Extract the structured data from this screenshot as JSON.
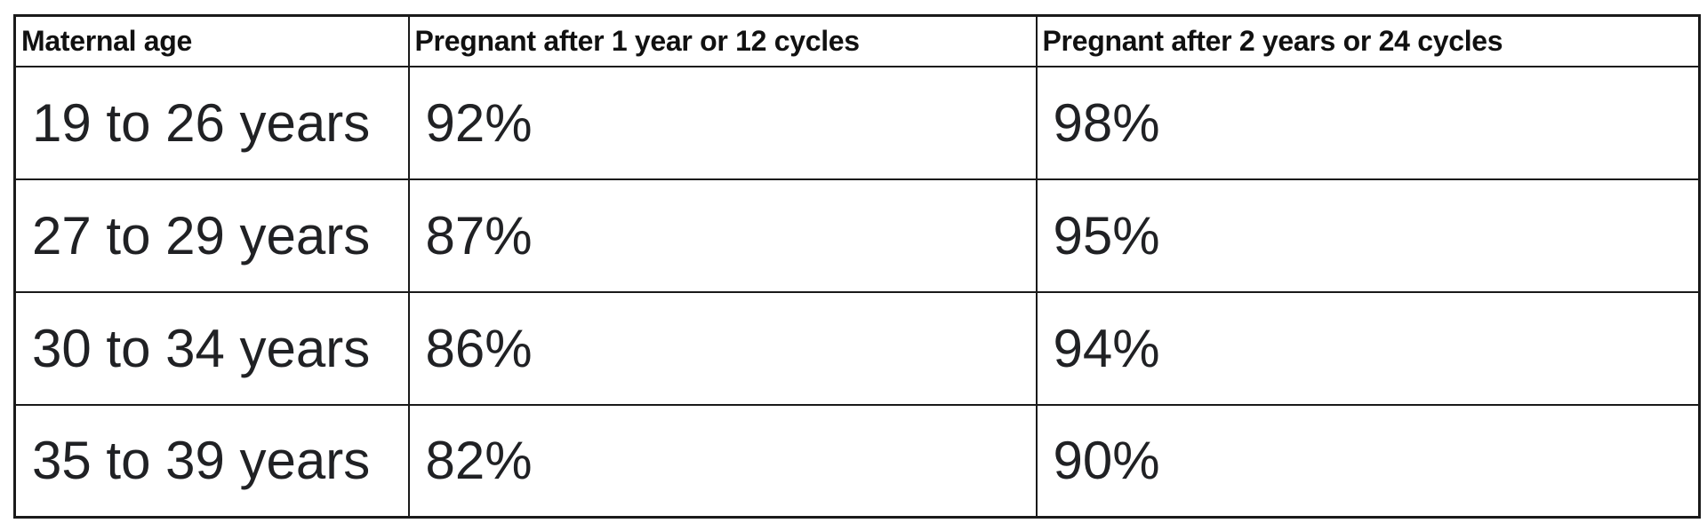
{
  "chart_data": {
    "type": "table",
    "columns": [
      "Maternal age",
      "Pregnant after 1 year or 12 cycles",
      "Pregnant after 2 years or 24 cycles"
    ],
    "rows": [
      [
        "19 to 26 years",
        "92%",
        "98%"
      ],
      [
        "27 to 29 years",
        "87%",
        "95%"
      ],
      [
        "30 to 34 years",
        "86%",
        "94%"
      ],
      [
        "35 to 39 years",
        "82%",
        "90%"
      ]
    ],
    "layout": {
      "grid": "on",
      "header_style": "bold",
      "body_text_larger_than_header": true
    }
  },
  "colors": {
    "border": "#1a1a1a",
    "text": "#202124",
    "background": "#ffffff"
  }
}
